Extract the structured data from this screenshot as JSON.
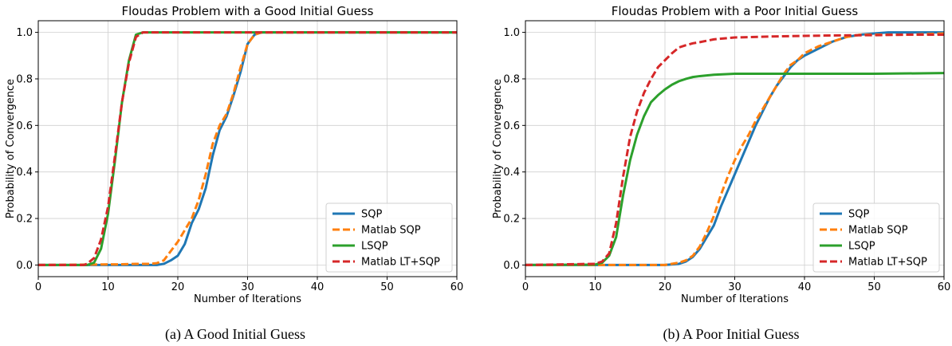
{
  "colors": {
    "sqp": "#1f77b4",
    "matlab_sqp": "#ff7f0e",
    "lsqp": "#2ca02c",
    "matlab_lt_sqp": "#d62728",
    "grid": "#cfcfcf"
  },
  "captions": {
    "a": "(a)  A Good Initial Guess",
    "b": "(b)  A Poor Initial Guess"
  },
  "chart_data": [
    {
      "type": "line",
      "title": "Floudas Problem with a Good Initial Guess",
      "xlabel": "Number of Iterations",
      "ylabel": "Probability of Convergence",
      "xlim": [
        0,
        60
      ],
      "ylim": [
        -0.05,
        1.05
      ],
      "xticks": [
        0,
        10,
        20,
        30,
        40,
        50,
        60
      ],
      "yticks": [
        0.0,
        0.2,
        0.4,
        0.6,
        0.8,
        1.0
      ],
      "yticklabels": [
        "0.0",
        "0.2",
        "0.4",
        "0.6",
        "0.8",
        "1.0"
      ],
      "grid": true,
      "legend_position": "lower-right",
      "series": [
        {
          "name": "SQP",
          "style": "solid",
          "color_key": "sqp",
          "points": [
            [
              0,
              0
            ],
            [
              17,
              0
            ],
            [
              18,
              0.005
            ],
            [
              19,
              0.02
            ],
            [
              20,
              0.04
            ],
            [
              21,
              0.09
            ],
            [
              22,
              0.18
            ],
            [
              23,
              0.24
            ],
            [
              24,
              0.33
            ],
            [
              25,
              0.47
            ],
            [
              26,
              0.58
            ],
            [
              27,
              0.64
            ],
            [
              28,
              0.73
            ],
            [
              29,
              0.83
            ],
            [
              30,
              0.95
            ],
            [
              31,
              0.99
            ],
            [
              32,
              1.0
            ],
            [
              60,
              1.0
            ]
          ]
        },
        {
          "name": "Matlab SQP",
          "style": "dashed",
          "color_key": "matlab_sqp",
          "points": [
            [
              0,
              0
            ],
            [
              12,
              0.003
            ],
            [
              14,
              0.005
            ],
            [
              16,
              0.005
            ],
            [
              17,
              0.008
            ],
            [
              18,
              0.02
            ],
            [
              19,
              0.06
            ],
            [
              20,
              0.1
            ],
            [
              21,
              0.15
            ],
            [
              22,
              0.2
            ],
            [
              23,
              0.28
            ],
            [
              24,
              0.39
            ],
            [
              25,
              0.52
            ],
            [
              26,
              0.6
            ],
            [
              27,
              0.65
            ],
            [
              28,
              0.74
            ],
            [
              29,
              0.85
            ],
            [
              30,
              0.95
            ],
            [
              31,
              0.99
            ],
            [
              32,
              1.0
            ],
            [
              60,
              1.0
            ]
          ]
        },
        {
          "name": "LSQP",
          "style": "solid",
          "color_key": "lsqp",
          "points": [
            [
              0,
              0
            ],
            [
              7,
              0
            ],
            [
              8,
              0.01
            ],
            [
              9,
              0.07
            ],
            [
              10,
              0.22
            ],
            [
              11,
              0.45
            ],
            [
              12,
              0.7
            ],
            [
              13,
              0.88
            ],
            [
              14,
              0.99
            ],
            [
              15,
              1.0
            ],
            [
              60,
              1.0
            ]
          ]
        },
        {
          "name": "Matlab LT+SQP",
          "style": "dashed",
          "color_key": "matlab_lt_sqp",
          "points": [
            [
              0,
              0
            ],
            [
              6.5,
              0
            ],
            [
              7,
              0.005
            ],
            [
              8,
              0.03
            ],
            [
              9,
              0.11
            ],
            [
              10,
              0.25
            ],
            [
              11,
              0.47
            ],
            [
              12,
              0.7
            ],
            [
              13,
              0.87
            ],
            [
              14,
              0.98
            ],
            [
              15,
              1.0
            ],
            [
              60,
              1.0
            ]
          ]
        }
      ]
    },
    {
      "type": "line",
      "title": "Floudas Problem with a Poor Initial Guess",
      "xlabel": "Number of Iterations",
      "ylabel": "Probability of Convergence",
      "xlim": [
        0,
        60
      ],
      "ylim": [
        -0.05,
        1.05
      ],
      "xticks": [
        0,
        10,
        20,
        30,
        40,
        50,
        60
      ],
      "yticks": [
        0.0,
        0.2,
        0.4,
        0.6,
        0.8,
        1.0
      ],
      "yticklabels": [
        "0.0",
        "0.2",
        "0.4",
        "0.6",
        "0.8",
        "1.0"
      ],
      "grid": true,
      "legend_position": "lower-right",
      "series": [
        {
          "name": "SQP",
          "style": "solid",
          "color_key": "sqp",
          "points": [
            [
              0,
              0
            ],
            [
              20,
              0
            ],
            [
              22,
              0.005
            ],
            [
              23,
              0.015
            ],
            [
              24,
              0.035
            ],
            [
              25,
              0.07
            ],
            [
              26,
              0.12
            ],
            [
              27,
              0.17
            ],
            [
              28,
              0.25
            ],
            [
              29,
              0.32
            ],
            [
              30,
              0.39
            ],
            [
              31,
              0.46
            ],
            [
              32,
              0.53
            ],
            [
              33,
              0.6
            ],
            [
              34,
              0.66
            ],
            [
              35,
              0.72
            ],
            [
              36,
              0.77
            ],
            [
              37,
              0.81
            ],
            [
              38,
              0.85
            ],
            [
              39,
              0.88
            ],
            [
              40,
              0.9
            ],
            [
              42,
              0.93
            ],
            [
              44,
              0.96
            ],
            [
              46,
              0.98
            ],
            [
              48,
              0.99
            ],
            [
              50,
              0.995
            ],
            [
              52,
              1.0
            ],
            [
              60,
              1.0
            ]
          ]
        },
        {
          "name": "Matlab SQP",
          "style": "dashed",
          "color_key": "matlab_sqp",
          "points": [
            [
              0,
              0
            ],
            [
              20,
              0
            ],
            [
              22,
              0.01
            ],
            [
              23,
              0.02
            ],
            [
              24,
              0.04
            ],
            [
              25,
              0.08
            ],
            [
              26,
              0.14
            ],
            [
              27,
              0.21
            ],
            [
              28,
              0.3
            ],
            [
              29,
              0.38
            ],
            [
              30,
              0.45
            ],
            [
              31,
              0.51
            ],
            [
              32,
              0.56
            ],
            [
              33,
              0.62
            ],
            [
              34,
              0.67
            ],
            [
              35,
              0.72
            ],
            [
              36,
              0.77
            ],
            [
              37,
              0.82
            ],
            [
              38,
              0.86
            ],
            [
              39,
              0.88
            ],
            [
              40,
              0.91
            ],
            [
              42,
              0.94
            ],
            [
              44,
              0.96
            ],
            [
              46,
              0.98
            ],
            [
              48,
              0.99
            ],
            [
              50,
              0.99
            ],
            [
              55,
              0.99
            ],
            [
              60,
              0.995
            ]
          ]
        },
        {
          "name": "LSQP",
          "style": "solid",
          "color_key": "lsqp",
          "points": [
            [
              0,
              0
            ],
            [
              10,
              0.002
            ],
            [
              11,
              0.01
            ],
            [
              12,
              0.04
            ],
            [
              13,
              0.12
            ],
            [
              14,
              0.3
            ],
            [
              15,
              0.45
            ],
            [
              16,
              0.56
            ],
            [
              17,
              0.64
            ],
            [
              18,
              0.7
            ],
            [
              19,
              0.73
            ],
            [
              20,
              0.755
            ],
            [
              21,
              0.775
            ],
            [
              22,
              0.79
            ],
            [
              23,
              0.8
            ],
            [
              24,
              0.808
            ],
            [
              25,
              0.812
            ],
            [
              27,
              0.818
            ],
            [
              30,
              0.822
            ],
            [
              40,
              0.822
            ],
            [
              50,
              0.822
            ],
            [
              60,
              0.825
            ]
          ]
        },
        {
          "name": "Matlab LT+SQP",
          "style": "dashed",
          "color_key": "matlab_lt_sqp",
          "points": [
            [
              0,
              0
            ],
            [
              10,
              0.005
            ],
            [
              11,
              0.015
            ],
            [
              12,
              0.05
            ],
            [
              13,
              0.18
            ],
            [
              14,
              0.38
            ],
            [
              15,
              0.55
            ],
            [
              16,
              0.66
            ],
            [
              17,
              0.74
            ],
            [
              18,
              0.8
            ],
            [
              19,
              0.85
            ],
            [
              20,
              0.88
            ],
            [
              21,
              0.91
            ],
            [
              22,
              0.935
            ],
            [
              23,
              0.945
            ],
            [
              24,
              0.953
            ],
            [
              25,
              0.958
            ],
            [
              27,
              0.97
            ],
            [
              30,
              0.978
            ],
            [
              35,
              0.982
            ],
            [
              40,
              0.985
            ],
            [
              45,
              0.987
            ],
            [
              50,
              0.988
            ],
            [
              55,
              0.99
            ],
            [
              60,
              0.99
            ]
          ]
        }
      ]
    }
  ]
}
